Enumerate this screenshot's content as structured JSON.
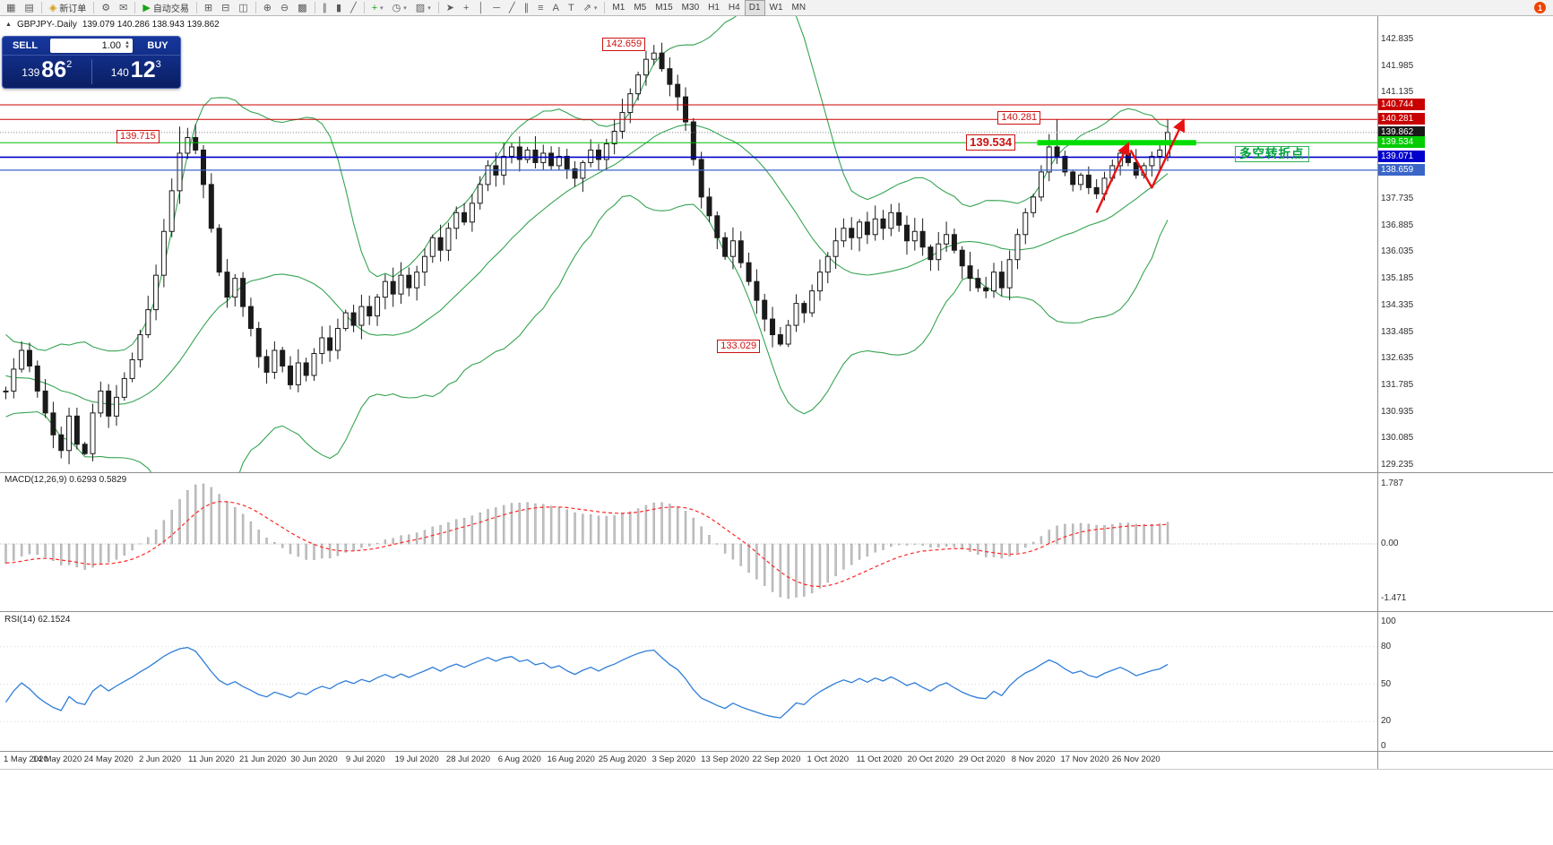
{
  "window": {
    "title": "GBPJPY-.Daily"
  },
  "toolbar": {
    "groups": [
      {
        "items": [
          {
            "name": "new-chart-button",
            "glyph": "▦"
          },
          {
            "name": "profiles-button",
            "glyph": "▤"
          }
        ]
      },
      {
        "items": [
          {
            "name": "new-order-button",
            "glyph": "◈",
            "glyph_color": "#d49a10",
            "label": "新订单"
          }
        ]
      },
      {
        "items": [
          {
            "name": "metaeditor-button",
            "glyph": "⚙"
          },
          {
            "name": "alerts-button",
            "glyph": "✉"
          }
        ]
      },
      {
        "items": [
          {
            "name": "autotrading-button",
            "glyph": "▶",
            "glyph_color": "#19a319",
            "label": "自动交易"
          }
        ]
      },
      {
        "items": [
          {
            "name": "tile-windows-button",
            "glyph": "⊞"
          },
          {
            "name": "cascade-windows-button",
            "glyph": "⊟"
          },
          {
            "name": "arrange-windows-button",
            "glyph": "◫"
          }
        ]
      },
      {
        "items": [
          {
            "name": "zoom-in-button",
            "glyph": "⊕"
          },
          {
            "name": "zoom-out-button",
            "glyph": "⊖"
          },
          {
            "name": "grid-button",
            "glyph": "▩"
          }
        ]
      },
      {
        "items": [
          {
            "name": "bar-chart-button",
            "glyph": "∥"
          },
          {
            "name": "candlestick-chart-button",
            "glyph": "▮"
          },
          {
            "name": "line-chart-button",
            "glyph": "╱"
          }
        ]
      },
      {
        "items": [
          {
            "name": "indicators-button",
            "glyph": "+",
            "glyph_color": "#19a319",
            "dropdown": true
          },
          {
            "name": "periods-button",
            "glyph": "◷",
            "dropdown": true
          },
          {
            "name": "templates-button",
            "glyph": "▨",
            "dropdown": true
          }
        ]
      },
      {
        "items": [
          {
            "name": "cursor-button",
            "glyph": "➤"
          },
          {
            "name": "crosshair-button",
            "glyph": "+"
          },
          {
            "name": "vertical-line-button",
            "glyph": "│"
          },
          {
            "name": "horizontal-line-button",
            "glyph": "─"
          },
          {
            "name": "trendline-button",
            "glyph": "╱"
          },
          {
            "name": "channel-button",
            "glyph": "∥"
          },
          {
            "name": "fibonacci-button",
            "glyph": "≡"
          },
          {
            "name": "text-button",
            "glyph": "A"
          },
          {
            "name": "label-button",
            "glyph": "T"
          },
          {
            "name": "arrows-tool-button",
            "glyph": "⇗",
            "dropdown": true
          }
        ]
      },
      {
        "items": [
          {
            "name": "tf-m1",
            "label": "M1"
          },
          {
            "name": "tf-m5",
            "label": "M5"
          },
          {
            "name": "tf-m15",
            "label": "M15"
          },
          {
            "name": "tf-m30",
            "label": "M30"
          },
          {
            "name": "tf-h1",
            "label": "H1"
          },
          {
            "name": "tf-h4",
            "label": "H4"
          },
          {
            "name": "tf-d1",
            "label": "D1",
            "active": true
          },
          {
            "name": "tf-w1",
            "label": "W1"
          },
          {
            "name": "tf-mn",
            "label": "MN"
          }
        ]
      }
    ],
    "badge": {
      "name": "notification-badge",
      "text": "1",
      "color": "#ee4400"
    }
  },
  "symbol_info": {
    "marker": "▲",
    "name": "GBPJPY-.Daily",
    "ohlc": "139.079 140.286 138.943 139.862"
  },
  "trade_panel": {
    "sell_label": "SELL",
    "buy_label": "BUY",
    "volume": "1.00",
    "sell_price_small": "139",
    "sell_price_big": "86",
    "sell_price_sup": "2",
    "buy_price_small": "140",
    "buy_price_big": "12",
    "buy_price_sup": "3"
  },
  "chart_data": {
    "type": "candlestick",
    "symbol": "GBPJPY-",
    "timeframe": "Daily",
    "current_bar": {
      "open": 139.079,
      "high": 140.286,
      "low": 138.943,
      "close": 139.862
    },
    "warmup_closes": [
      133.8,
      133.5,
      133.1,
      132.7,
      133.0,
      132.6,
      132.2,
      132.5,
      132.0,
      131.7,
      132.1,
      132.5,
      132.2,
      131.8,
      131.4,
      131.7,
      131.3,
      131.0,
      131.3,
      131.6
    ],
    "closes": [
      131.6,
      132.3,
      132.9,
      132.4,
      131.6,
      130.9,
      130.2,
      129.7,
      130.8,
      129.9,
      129.6,
      130.9,
      131.6,
      130.8,
      131.4,
      132.0,
      132.6,
      133.4,
      134.2,
      135.3,
      136.7,
      138.0,
      139.2,
      139.7,
      139.3,
      138.2,
      136.8,
      135.4,
      134.6,
      135.2,
      134.3,
      133.6,
      132.7,
      132.2,
      132.9,
      132.4,
      131.8,
      132.5,
      132.1,
      132.8,
      133.3,
      132.9,
      133.6,
      134.1,
      133.7,
      134.3,
      134.0,
      134.6,
      135.1,
      134.7,
      135.3,
      134.9,
      135.4,
      135.9,
      136.5,
      136.1,
      136.8,
      137.3,
      137.0,
      137.6,
      138.2,
      138.8,
      138.5,
      139.1,
      139.4,
      139.0,
      139.3,
      138.9,
      139.2,
      138.8,
      139.1,
      138.7,
      138.4,
      138.9,
      139.3,
      139.0,
      139.5,
      139.9,
      140.5,
      141.1,
      141.7,
      142.2,
      142.4,
      141.9,
      141.4,
      141.0,
      140.2,
      139.0,
      137.8,
      137.2,
      136.5,
      135.9,
      136.4,
      135.7,
      135.1,
      134.5,
      133.9,
      133.4,
      133.1,
      133.7,
      134.4,
      134.1,
      134.8,
      135.4,
      135.9,
      136.4,
      136.8,
      136.5,
      137.0,
      136.6,
      137.1,
      136.8,
      137.3,
      136.9,
      136.4,
      136.7,
      136.2,
      135.8,
      136.3,
      136.6,
      136.1,
      135.6,
      135.2,
      134.9,
      134.8,
      135.4,
      134.9,
      135.8,
      136.6,
      137.3,
      137.8,
      138.6,
      139.4,
      139.1,
      138.6,
      138.2,
      138.5,
      138.1,
      137.9,
      138.4,
      138.8,
      139.2,
      138.9,
      138.5,
      138.8,
      139.1,
      139.3,
      139.862
    ],
    "overrides": {
      "7": {
        "low": 129.45
      },
      "10": {
        "low": 129.55
      },
      "22": {
        "high": 140.05
      },
      "82": {
        "high": 142.659
      },
      "98": {
        "low": 133.029
      },
      "133": {
        "high": 140.281
      },
      "147": {
        "open": 139.079,
        "high": 140.286,
        "low": 138.943,
        "close": 139.862
      }
    },
    "indicators": {
      "bollinger": {
        "period": 20,
        "deviation": 2,
        "color": "#36a452"
      },
      "macd": {
        "fast": 12,
        "slow": 26,
        "signal": 9,
        "label": "MACD(12,26,9) 0.6293 0.5829",
        "scale": {
          "max": "1.787",
          "zero": "0.00",
          "min": "-1.471"
        }
      },
      "rsi": {
        "period": 14,
        "label": "RSI(14) 62.1524",
        "current": 62.1524,
        "levels": [
          100,
          80,
          50,
          20,
          0
        ]
      }
    },
    "hlines": [
      {
        "price": 140.744,
        "color": "#cc0000",
        "w": 1,
        "dash": ""
      },
      {
        "price": 140.281,
        "color": "#cc0000",
        "w": 1,
        "dash": ""
      },
      {
        "price": 139.862,
        "color": "#888888",
        "w": 1,
        "dash": "1,2"
      },
      {
        "price": 139.534,
        "color": "#00bb00",
        "w": 1,
        "dash": ""
      },
      {
        "price": 139.071,
        "color": "#0000cc",
        "w": 1.6,
        "dash": ""
      },
      {
        "price": 138.659,
        "color": "#3a66c8",
        "w": 1.2,
        "dash": ""
      }
    ],
    "thick_segment": {
      "price": 139.534,
      "from_idx": 130.5,
      "to_idx": 150.6,
      "color": "#00dd00",
      "w": 6
    },
    "y_axis": {
      "plain_ticks": [
        142.835,
        141.985,
        141.135,
        137.735,
        136.885,
        136.035,
        135.185,
        134.335,
        133.485,
        132.635,
        131.785,
        130.935,
        130.085,
        129.235
      ],
      "tagged": [
        {
          "text": "140.744",
          "price": 140.744,
          "bg": "#c80000",
          "fg": "#ffffff"
        },
        {
          "text": "140.281",
          "price": 140.281,
          "bg": "#c80000",
          "fg": "#ffffff"
        },
        {
          "text": "139.862",
          "price": 139.862,
          "bg": "#1a1a1a",
          "fg": "#ffffff"
        },
        {
          "text": "139.534",
          "price": 139.534,
          "bg": "#00cc00",
          "fg": "#ffffff"
        },
        {
          "text": "139.071",
          "price": 139.071,
          "bg": "#0000cc",
          "fg": "#ffffff"
        },
        {
          "text": "138.659",
          "price": 138.659,
          "bg": "#3a66c8",
          "fg": "#ffffff"
        }
      ]
    },
    "x_axis": {
      "labels": [
        {
          "text": "1 May 2020",
          "idx": 0
        },
        {
          "text": "14 May 2020",
          "idx": 6.5
        },
        {
          "text": "24 May 2020",
          "idx": 13
        },
        {
          "text": "2 Jun 2020",
          "idx": 19.5
        },
        {
          "text": "11 Jun 2020",
          "idx": 26
        },
        {
          "text": "21 Jun 2020",
          "idx": 32.5
        },
        {
          "text": "30 Jun 2020",
          "idx": 39
        },
        {
          "text": "9 Jul 2020",
          "idx": 45.5
        },
        {
          "text": "19 Jul 2020",
          "idx": 52
        },
        {
          "text": "28 Jul 2020",
          "idx": 58.5
        },
        {
          "text": "6 Aug 2020",
          "idx": 65
        },
        {
          "text": "16 Aug 2020",
          "idx": 71.5
        },
        {
          "text": "25 Aug 2020",
          "idx": 78
        },
        {
          "text": "3 Sep 2020",
          "idx": 84.5
        },
        {
          "text": "13 Sep 2020",
          "idx": 91
        },
        {
          "text": "22 Sep 2020",
          "idx": 97.5
        },
        {
          "text": "1 Oct 2020",
          "idx": 104
        },
        {
          "text": "11 Oct 2020",
          "idx": 110.5
        },
        {
          "text": "20 Oct 2020",
          "idx": 117
        },
        {
          "text": "29 Oct 2020",
          "idx": 123.5
        },
        {
          "text": "8 Nov 2020",
          "idx": 130
        },
        {
          "text": "17 Nov 2020",
          "idx": 136.5
        },
        {
          "text": "26 Nov 2020",
          "idx": 143
        }
      ]
    },
    "annotations": {
      "price_labels": [
        {
          "text": "142.659",
          "idx": 75.5,
          "price": 142.66,
          "big": false
        },
        {
          "text": "139.715",
          "idx": 14,
          "price": 139.715,
          "big": false
        },
        {
          "text": "140.281",
          "idx": 125.5,
          "price": 140.31,
          "big": false
        },
        {
          "text": "139.534",
          "idx": 121.5,
          "price": 139.534,
          "big": true
        },
        {
          "text": "133.029",
          "idx": 90,
          "price": 133.0,
          "big": false
        }
      ],
      "note": {
        "text": "多空转折点",
        "idx": 155.5,
        "price": 139.15
      },
      "arrows": [
        {
          "points": [
            {
              "i": 138,
              "p": 137.3
            },
            {
              "i": 142,
              "p": 139.5
            }
          ]
        },
        {
          "points": [
            {
              "i": 142.3,
              "p": 139.3
            },
            {
              "i": 145,
              "p": 138.1
            },
            {
              "i": 149,
              "p": 140.25
            }
          ]
        }
      ],
      "arrow_color": "#e81111"
    }
  }
}
